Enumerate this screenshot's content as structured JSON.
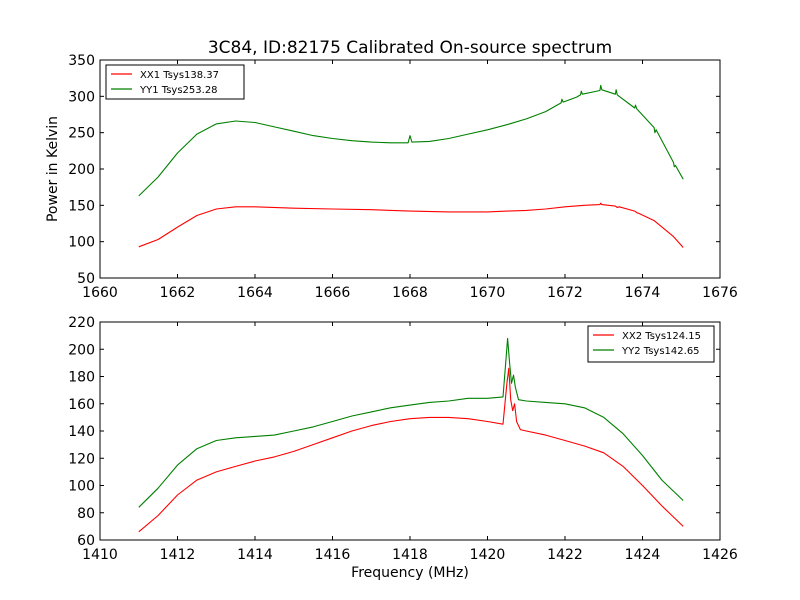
{
  "chart_data": [
    {
      "type": "line",
      "title": "3C84, ID:82175 Calibrated On-source spectrum",
      "xlabel": "",
      "ylabel": "Power in Kelvin",
      "xlim": [
        1660,
        1676
      ],
      "ylim": [
        50,
        350
      ],
      "xticks": [
        1660,
        1662,
        1664,
        1666,
        1668,
        1670,
        1672,
        1674,
        1676
      ],
      "yticks": [
        50,
        100,
        150,
        200,
        250,
        300,
        350
      ],
      "legend_position": "top-left",
      "series": [
        {
          "name": "XX1 Tsys138.37",
          "color": "#ff0000",
          "points": [
            [
              1661.0,
              93
            ],
            [
              1661.5,
              103
            ],
            [
              1662.0,
              120
            ],
            [
              1662.5,
              136
            ],
            [
              1663.0,
              145
            ],
            [
              1663.5,
              148
            ],
            [
              1664.0,
              148
            ],
            [
              1665.0,
              146
            ],
            [
              1666.0,
              145
            ],
            [
              1667.0,
              144
            ],
            [
              1668.0,
              142
            ],
            [
              1669.0,
              141
            ],
            [
              1670.0,
              141
            ],
            [
              1670.5,
              142
            ],
            [
              1671.0,
              143
            ],
            [
              1671.5,
              145
            ],
            [
              1672.0,
              148
            ],
            [
              1672.5,
              150
            ],
            [
              1672.9,
              151
            ],
            [
              1672.92,
              153
            ],
            [
              1672.95,
              151
            ],
            [
              1673.3,
              149
            ],
            [
              1673.35,
              147
            ],
            [
              1673.4,
              148
            ],
            [
              1673.8,
              142
            ],
            [
              1673.85,
              140
            ],
            [
              1673.9,
              139
            ],
            [
              1674.3,
              129
            ],
            [
              1674.8,
              107
            ],
            [
              1675.05,
              92
            ]
          ]
        },
        {
          "name": "YY1 Tsys253.28",
          "color": "#008000",
          "points": [
            [
              1661.0,
              163
            ],
            [
              1661.5,
              189
            ],
            [
              1662.0,
              222
            ],
            [
              1662.5,
              248
            ],
            [
              1663.0,
              262
            ],
            [
              1663.5,
              266
            ],
            [
              1664.0,
              264
            ],
            [
              1664.5,
              258
            ],
            [
              1665.0,
              252
            ],
            [
              1665.5,
              246
            ],
            [
              1666.0,
              242
            ],
            [
              1666.5,
              239
            ],
            [
              1667.0,
              237
            ],
            [
              1667.5,
              236
            ],
            [
              1667.95,
              236
            ],
            [
              1668.0,
              246
            ],
            [
              1668.05,
              237
            ],
            [
              1668.5,
              238
            ],
            [
              1669.0,
              242
            ],
            [
              1669.5,
              248
            ],
            [
              1670.0,
              254
            ],
            [
              1670.5,
              261
            ],
            [
              1671.0,
              269
            ],
            [
              1671.5,
              279
            ],
            [
              1671.9,
              291
            ],
            [
              1671.92,
              296
            ],
            [
              1671.95,
              292
            ],
            [
              1672.3,
              299
            ],
            [
              1672.4,
              302
            ],
            [
              1672.42,
              307
            ],
            [
              1672.45,
              303
            ],
            [
              1672.9,
              308
            ],
            [
              1672.92,
              315
            ],
            [
              1672.95,
              309
            ],
            [
              1673.3,
              303
            ],
            [
              1673.32,
              309
            ],
            [
              1673.35,
              302
            ],
            [
              1673.8,
              284
            ],
            [
              1673.82,
              288
            ],
            [
              1673.85,
              283
            ],
            [
              1674.3,
              257
            ],
            [
              1674.32,
              250
            ],
            [
              1674.35,
              254
            ],
            [
              1674.8,
              209
            ],
            [
              1674.82,
              203
            ],
            [
              1674.85,
              205
            ],
            [
              1675.05,
              186
            ]
          ]
        }
      ]
    },
    {
      "type": "line",
      "title": "",
      "xlabel": "Frequency (MHz)",
      "ylabel": "",
      "xlim": [
        1410,
        1426
      ],
      "ylim": [
        60,
        220
      ],
      "xticks": [
        1410,
        1412,
        1414,
        1416,
        1418,
        1420,
        1422,
        1424,
        1426
      ],
      "yticks": [
        60,
        80,
        100,
        120,
        140,
        160,
        180,
        200,
        220
      ],
      "legend_position": "top-right",
      "series": [
        {
          "name": "XX2 Tsys124.15",
          "color": "#ff0000",
          "points": [
            [
              1411.0,
              66
            ],
            [
              1411.5,
              78
            ],
            [
              1412.0,
              93
            ],
            [
              1412.5,
              104
            ],
            [
              1413.0,
              110
            ],
            [
              1413.5,
              114
            ],
            [
              1414.0,
              118
            ],
            [
              1414.5,
              121
            ],
            [
              1415.0,
              125
            ],
            [
              1415.5,
              130
            ],
            [
              1416.0,
              135
            ],
            [
              1416.5,
              140
            ],
            [
              1417.0,
              144
            ],
            [
              1417.5,
              147
            ],
            [
              1418.0,
              149
            ],
            [
              1418.5,
              150
            ],
            [
              1419.0,
              150
            ],
            [
              1419.5,
              149
            ],
            [
              1420.0,
              147
            ],
            [
              1420.4,
              145
            ],
            [
              1420.5,
              175
            ],
            [
              1420.55,
              186
            ],
            [
              1420.6,
              163
            ],
            [
              1420.65,
              155
            ],
            [
              1420.7,
              160
            ],
            [
              1420.75,
              147
            ],
            [
              1420.85,
              141
            ],
            [
              1421.0,
              140
            ],
            [
              1421.5,
              137
            ],
            [
              1422.0,
              133
            ],
            [
              1422.5,
              129
            ],
            [
              1423.0,
              124
            ],
            [
              1423.5,
              114
            ],
            [
              1424.0,
              100
            ],
            [
              1424.5,
              85
            ],
            [
              1425.05,
              70
            ]
          ]
        },
        {
          "name": "YY2 Tsys142.65",
          "color": "#008000",
          "points": [
            [
              1411.0,
              84
            ],
            [
              1411.5,
              98
            ],
            [
              1412.0,
              115
            ],
            [
              1412.5,
              127
            ],
            [
              1413.0,
              133
            ],
            [
              1413.5,
              135
            ],
            [
              1414.0,
              136
            ],
            [
              1414.5,
              137
            ],
            [
              1415.0,
              140
            ],
            [
              1415.5,
              143
            ],
            [
              1416.0,
              147
            ],
            [
              1416.5,
              151
            ],
            [
              1417.0,
              154
            ],
            [
              1417.5,
              157
            ],
            [
              1418.0,
              159
            ],
            [
              1418.5,
              161
            ],
            [
              1419.0,
              162
            ],
            [
              1419.5,
              164
            ],
            [
              1420.0,
              164
            ],
            [
              1420.4,
              165
            ],
            [
              1420.47,
              190
            ],
            [
              1420.52,
              208
            ],
            [
              1420.57,
              190
            ],
            [
              1420.62,
              175
            ],
            [
              1420.67,
              181
            ],
            [
              1420.72,
              172
            ],
            [
              1420.8,
              163
            ],
            [
              1421.0,
              162
            ],
            [
              1421.5,
              161
            ],
            [
              1422.0,
              160
            ],
            [
              1422.5,
              157
            ],
            [
              1423.0,
              150
            ],
            [
              1423.5,
              138
            ],
            [
              1424.0,
              122
            ],
            [
              1424.5,
              104
            ],
            [
              1425.05,
              89
            ]
          ]
        }
      ]
    }
  ]
}
